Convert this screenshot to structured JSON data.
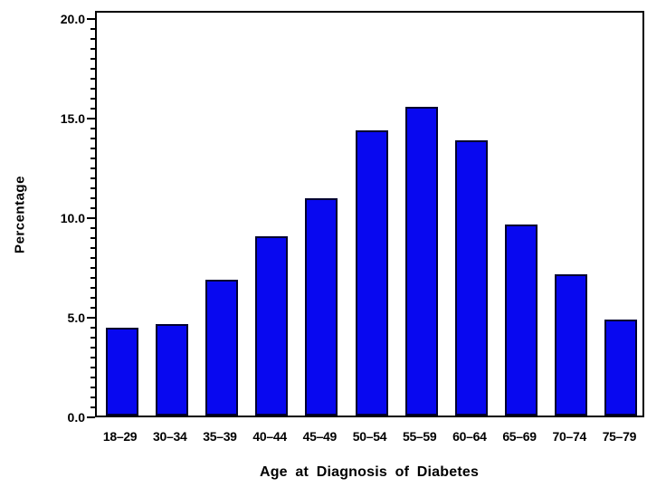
{
  "chart_data": {
    "type": "bar",
    "xlabel": "Age at Diagnosis of Diabetes",
    "ylabel": "Percentage",
    "categories": [
      "18–29",
      "30–34",
      "35–39",
      "40–44",
      "45–49",
      "50–54",
      "55–59",
      "60–64",
      "65–69",
      "70–74",
      "75–79"
    ],
    "values": [
      4.4,
      4.6,
      6.8,
      9.0,
      10.9,
      14.3,
      15.5,
      13.8,
      9.6,
      7.1,
      4.8
    ],
    "ylim": [
      0,
      20
    ],
    "y_major_ticks": [
      0,
      5,
      10,
      15,
      20
    ],
    "y_tick_labels": [
      "0.0",
      "5.0",
      "10.0",
      "15.0",
      "20.0"
    ],
    "y_minor_step": 0.5,
    "grid": false,
    "legend": "none",
    "colors": {
      "bar_fill": "#0808f0",
      "bar_border": "#000030",
      "axis": "#000000",
      "background": "#ffffff"
    }
  }
}
